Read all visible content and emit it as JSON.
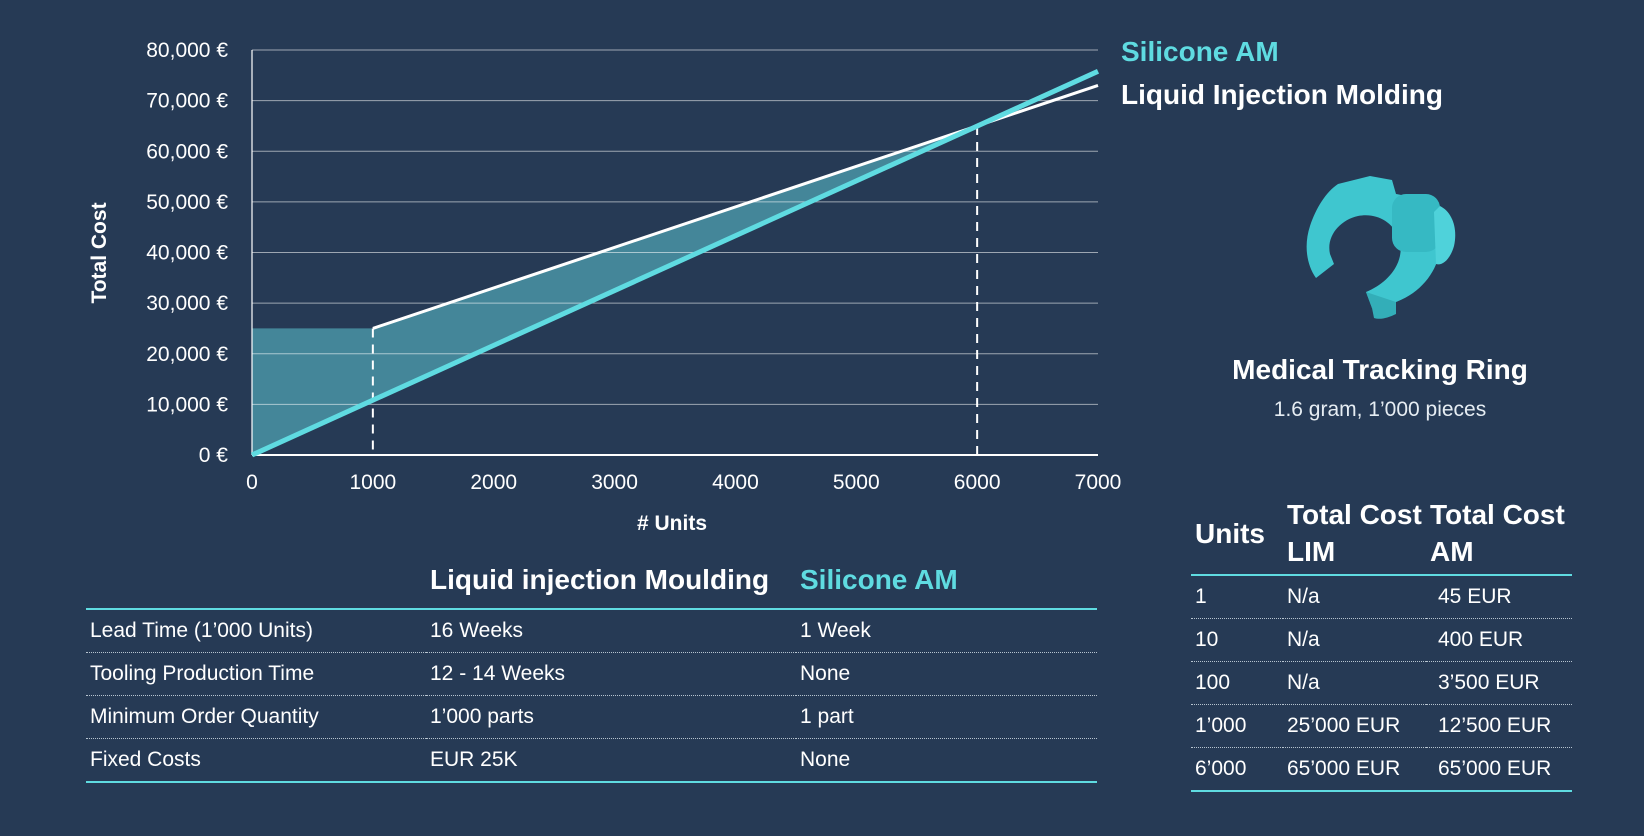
{
  "chart_data": {
    "type": "line",
    "xlabel": "# Units",
    "ylabel": "Total Cost",
    "xlim": [
      0,
      7000
    ],
    "ylim": [
      0,
      80000
    ],
    "x_ticks": [
      "0",
      "1000",
      "2000",
      "3000",
      "4000",
      "5000",
      "6000",
      "7000"
    ],
    "y_ticks": [
      "0 €",
      "10,000 €",
      "20,000 €",
      "30,000 €",
      "40,000 €",
      "50,000 €",
      "60,000 €",
      "70,000 €",
      "80,000 €"
    ],
    "grid": "horizontal",
    "legend_position": "top-right",
    "series": [
      {
        "name": "Silicone AM",
        "color": "#5fdbe1",
        "x": [
          0,
          7000
        ],
        "y": [
          0,
          75800
        ]
      },
      {
        "name": "Liquid Injection Molding",
        "color": "#ffffff",
        "x": [
          1000,
          6000,
          7000
        ],
        "y": [
          25000,
          65000,
          73000
        ]
      }
    ],
    "shaded_region": {
      "color": "#4a94a6",
      "from_x": 0,
      "to_x": 6000,
      "lim_fixed_cost": 25000
    },
    "reference_lines_x": [
      1000,
      6000
    ]
  },
  "product": {
    "name": "Medical Tracking Ring",
    "description": "1.6 gram, 1’000 pieces",
    "icon": "tracking-ring-icon",
    "color": "#3fc6cf"
  },
  "comparison": {
    "headers": [
      "",
      "Liquid injection Moulding",
      "Silicone AM"
    ],
    "rows": [
      [
        "Lead Time (1’000 Units)",
        "16 Weeks",
        "1 Week"
      ],
      [
        "Tooling Production Time",
        "12 - 14 Weeks",
        "None"
      ],
      [
        "Minimum Order Quantity",
        "1’000 parts",
        "1 part"
      ],
      [
        "Fixed Costs",
        "EUR 25K",
        "None"
      ]
    ]
  },
  "cost_table": {
    "headers": {
      "units": "Units",
      "lim": "Total Cost LIM",
      "am": "Total Cost AM"
    },
    "rows": [
      [
        "1",
        "N/a",
        "45 EUR"
      ],
      [
        "10",
        "N/a",
        "400 EUR"
      ],
      [
        "100",
        "N/a",
        "3’500 EUR"
      ],
      [
        "1’000",
        "25’000 EUR",
        "12’500 EUR"
      ],
      [
        "6’000",
        "65’000 EUR",
        "65’000 EUR"
      ]
    ]
  },
  "colors": {
    "background": "#263a55",
    "accent": "#5fdbe1",
    "fill": "#4a94a6"
  }
}
